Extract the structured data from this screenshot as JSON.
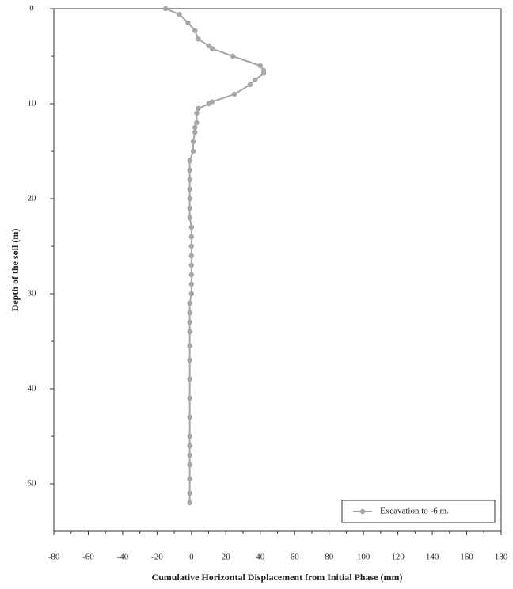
{
  "chart_data": {
    "type": "line",
    "xlabel": "Cumulative Horizontal Displacement from Initial Phase   (mm)",
    "ylabel": "Depth of the soil (m)",
    "xlim": [
      -80,
      180
    ],
    "xticks": [
      -80,
      -60,
      -40,
      -20,
      0,
      20,
      40,
      60,
      80,
      100,
      120,
      140,
      160,
      180
    ],
    "ylim": [
      0,
      55
    ],
    "yticks": [
      0,
      10,
      20,
      30,
      40,
      50
    ],
    "y_inverted": true,
    "legend": "lower right",
    "series": [
      {
        "name": "Excavation to -6 m.",
        "color": "#a6a6a6",
        "x": [
          -15,
          -7,
          -2,
          2,
          4,
          10,
          12,
          24,
          40,
          42,
          42,
          37,
          34,
          25,
          12,
          10,
          4,
          3,
          3,
          2,
          2,
          1,
          1,
          -1,
          -1,
          -1,
          -1,
          -1,
          -1,
          -1,
          0,
          0,
          0,
          0,
          0,
          0,
          0,
          0,
          -1,
          -1,
          -1,
          -1,
          -1,
          -1,
          -1,
          -1,
          -1,
          -1,
          -1,
          -1,
          -1,
          -1,
          -1,
          -1
        ],
        "values": [
          0,
          0.6,
          1.5,
          2.3,
          3.2,
          3.9,
          4.2,
          5.0,
          6.0,
          6.5,
          6.8,
          7.5,
          8.0,
          9.0,
          9.8,
          10.0,
          10.5,
          11.0,
          12.0,
          12.5,
          13.0,
          14.0,
          15.0,
          16.0,
          17.0,
          18.0,
          19.0,
          20.0,
          21.0,
          22.0,
          23.0,
          24.0,
          25.0,
          26.0,
          27.0,
          28.0,
          29.0,
          30.0,
          31.0,
          32.0,
          33.0,
          34.0,
          35.5,
          37.0,
          39.0,
          41.0,
          43.0,
          45.0,
          46.0,
          47.0,
          48.0,
          49.5,
          51.0,
          52.0
        ]
      }
    ]
  }
}
